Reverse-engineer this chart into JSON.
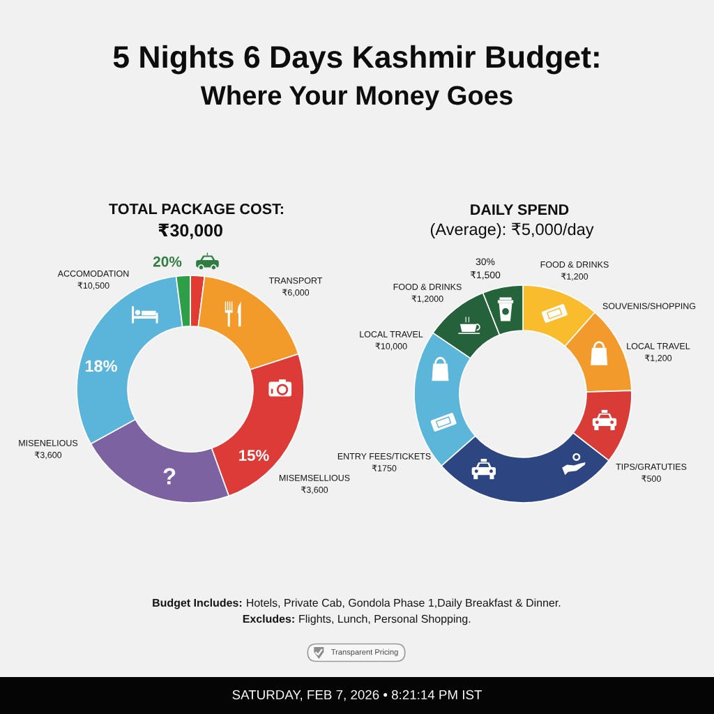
{
  "chart_data": [
    {
      "type": "other",
      "title": "5 Nights 6 Days Kashmir Budget:",
      "subtitle": "Where Your Money Goes",
      "annotations": [
        "Budget Includes: Hotels, Private Cab, Gondola Phase 1,Daily Breakfast & Dinner.",
        "Excludes: Flights, Lunch, Personal Shopping.",
        "Transparent Pricing",
        "SATURDAY, FEB 7, 2026 • 8:21:14 PM IST"
      ]
    },
    {
      "type": "donut",
      "title": "TOTAL PACKAGE COST:\n₹30,000",
      "categories": [
        null,
        null,
        null,
        null,
        null,
        null
      ],
      "values": [
        2,
        18,
        24.5,
        22.5,
        31,
        2
      ],
      "colors": [
        "#e03c33",
        "#f29b2b",
        "#dc3b37",
        "#7d62a2",
        "#5bb5da",
        "#2f9e48"
      ],
      "annotations": [
        "ACCOMODATION\n₹10,500",
        "20%",
        "TRANSPORT\n₹6,000",
        "18%",
        "MISENELIOUS\n₹3,600",
        "15%",
        "?",
        "MISEMSELLIOUS\n₹3,600"
      ]
    },
    {
      "type": "donut",
      "title": "DAILY SPEND\n(Average): ₹5,000/day",
      "categories": [
        null,
        null,
        null,
        null,
        null,
        null,
        null
      ],
      "values": [
        11.5,
        13,
        11,
        28,
        21,
        9.5,
        6
      ],
      "colors": [
        "#f9bc2c",
        "#f29a2c",
        "#d93b37",
        "#2d4681",
        "#5bb6da",
        "#25613a",
        "#25633a"
      ],
      "annotations": [
        "30%\n₹1,500",
        "FOOD & DRINKS\n₹1,200",
        "FOOD & DRINKS\n₹1,2000",
        "SOUVENIS/SHOPPING",
        "LOCAL TRAVEL\n₹1,200",
        "LOCAL TRAVEL\n₹10,000",
        "ENTRY FEES/TICKETS\n₹1750",
        "TIPS/GRATUTIES\n₹500"
      ]
    }
  ]
}
